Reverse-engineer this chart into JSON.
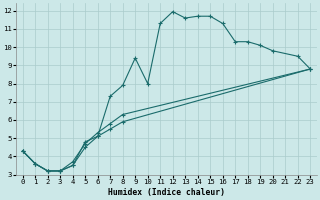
{
  "xlabel": "Humidex (Indice chaleur)",
  "bg_color": "#cce8e8",
  "grid_color": "#aacccc",
  "line_color": "#1a6b6b",
  "xlim": [
    -0.5,
    23.5
  ],
  "ylim": [
    3,
    12.4
  ],
  "xticks": [
    0,
    1,
    2,
    3,
    4,
    5,
    6,
    7,
    8,
    9,
    10,
    11,
    12,
    13,
    14,
    15,
    16,
    17,
    18,
    19,
    20,
    21,
    22,
    23
  ],
  "yticks": [
    3,
    4,
    5,
    6,
    7,
    8,
    9,
    10,
    11,
    12
  ],
  "line1_x": [
    0,
    1,
    2,
    3,
    4,
    5,
    6,
    7,
    8,
    9,
    10,
    11,
    12,
    13,
    14,
    15,
    16,
    17,
    18,
    19,
    20,
    22,
    23
  ],
  "line1_y": [
    4.3,
    3.6,
    3.2,
    3.2,
    3.5,
    4.8,
    5.1,
    7.3,
    7.9,
    9.4,
    8.0,
    11.3,
    11.95,
    11.6,
    11.7,
    11.7,
    11.3,
    10.3,
    10.3,
    10.1,
    9.8,
    9.5,
    8.8
  ],
  "line2_x": [
    0,
    1,
    2,
    3,
    4,
    5,
    6,
    7,
    8,
    23
  ],
  "line2_y": [
    4.3,
    3.6,
    3.2,
    3.2,
    3.5,
    4.5,
    5.1,
    5.5,
    5.9,
    8.8
  ],
  "line3_x": [
    0,
    1,
    2,
    3,
    4,
    5,
    6,
    7,
    8,
    23
  ],
  "line3_y": [
    4.3,
    3.6,
    3.2,
    3.2,
    3.7,
    4.7,
    5.3,
    5.8,
    6.3,
    8.8
  ]
}
